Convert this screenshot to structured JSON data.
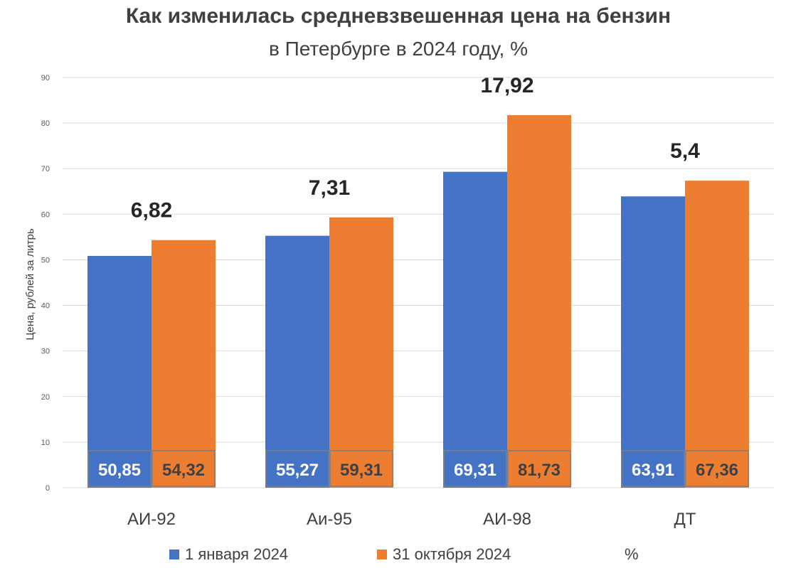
{
  "chart_data": {
    "type": "bar",
    "title": "Как изменилась средневзвешенная цена на бензин",
    "subtitle": "в Петербурге в 2024 году, %",
    "ylabel": "Цена, рублей за литрь",
    "xlabel": "",
    "ylim": [
      0,
      90
    ],
    "yticks": [
      0,
      10,
      20,
      30,
      40,
      50,
      60,
      70,
      80,
      90
    ],
    "grid": true,
    "legend_position": "bottom",
    "categories": [
      "АИ-92",
      "Аи-95",
      "АИ-98",
      "ДТ"
    ],
    "series": [
      {
        "name": "1 января 2024",
        "color": "#4472c4",
        "values": [
          50.85,
          55.27,
          69.31,
          63.91
        ],
        "labels": [
          "50,85",
          "55,27",
          "69,31",
          "63,91"
        ]
      },
      {
        "name": "31 октября 2024",
        "color": "#ed7d31",
        "values": [
          54.32,
          59.31,
          81.73,
          67.36
        ],
        "labels": [
          "54,32",
          "59,31",
          "81,73",
          "67,36"
        ]
      }
    ],
    "percent_series_name": "%",
    "percent_labels": [
      "6,82",
      "7,31",
      "17,92",
      "5,4"
    ]
  }
}
